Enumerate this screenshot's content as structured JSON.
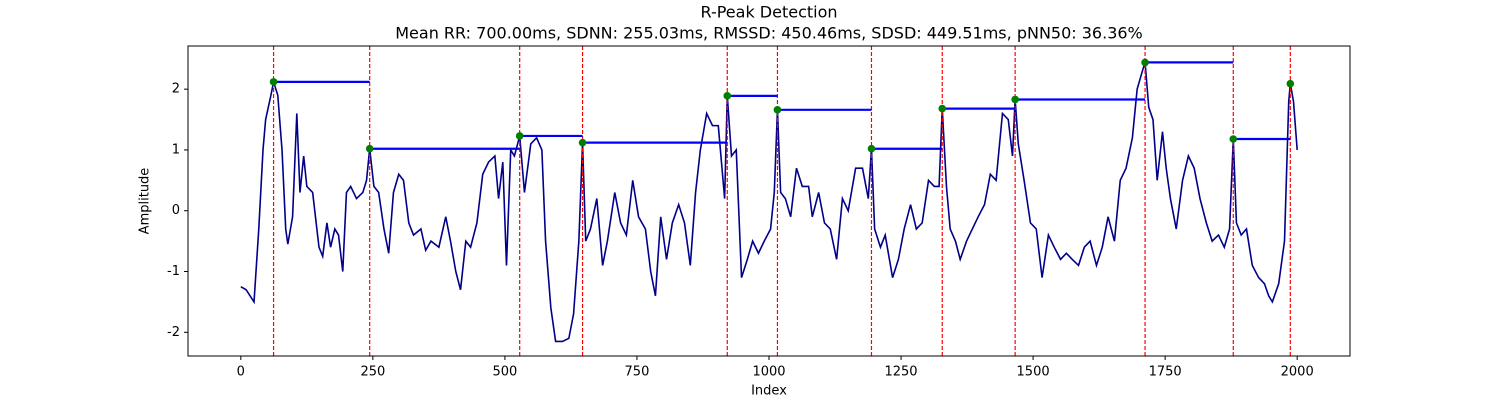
{
  "chart_data": {
    "type": "line",
    "title": "R-Peak Detection",
    "subtitle": "Mean RR: 700.00ms, SDNN: 255.03ms, RMSSD: 450.46ms, SDSD: 449.51ms, pNN50: 36.36%",
    "x_label": "Index",
    "y_label": "Amplitude",
    "x": [
      0,
      10,
      25,
      34,
      42,
      47,
      57,
      62,
      70,
      78,
      85,
      89,
      98,
      106,
      112,
      119,
      125,
      136,
      148,
      155,
      163,
      170,
      178,
      185,
      193,
      200,
      208,
      219,
      231,
      238,
      244,
      252,
      261,
      271,
      280,
      289,
      299,
      308,
      318,
      327,
      341,
      350,
      360,
      375,
      388,
      397,
      407,
      416,
      426,
      435,
      447,
      458,
      469,
      481,
      488,
      496,
      503,
      511,
      518,
      528,
      537,
      549,
      560,
      570,
      577,
      587,
      596,
      609,
      621,
      630,
      640,
      647,
      653,
      662,
      674,
      685,
      694,
      708,
      719,
      730,
      742,
      753,
      766,
      776,
      785,
      795,
      806,
      817,
      829,
      840,
      851,
      861,
      870,
      882,
      893,
      904,
      916,
      921,
      929,
      938,
      948,
      959,
      969,
      980,
      991,
      1003,
      1010,
      1016,
      1022,
      1031,
      1041,
      1052,
      1063,
      1075,
      1082,
      1094,
      1105,
      1116,
      1128,
      1139,
      1150,
      1164,
      1177,
      1188,
      1194,
      1200,
      1211,
      1220,
      1234,
      1245,
      1256,
      1268,
      1279,
      1290,
      1302,
      1313,
      1322,
      1328,
      1336,
      1343,
      1353,
      1362,
      1374,
      1385,
      1396,
      1408,
      1419,
      1430,
      1442,
      1453,
      1461,
      1466,
      1472,
      1483,
      1495,
      1506,
      1517,
      1529,
      1540,
      1552,
      1563,
      1574,
      1586,
      1597,
      1608,
      1620,
      1631,
      1642,
      1654,
      1665,
      1676,
      1688,
      1697,
      1707,
      1712,
      1719,
      1727,
      1735,
      1745,
      1752,
      1760,
      1771,
      1783,
      1794,
      1805,
      1816,
      1828,
      1839,
      1851,
      1862,
      1872,
      1879,
      1885,
      1894,
      1904,
      1915,
      1927,
      1938,
      1946,
      1953,
      1965,
      1976,
      1984,
      1987,
      1993,
      2000
    ],
    "series": [
      {
        "color": "#00008b",
        "values": [
          -1.25,
          -1.3,
          -1.5,
          -0.3,
          1.0,
          1.5,
          1.9,
          2.12,
          1.9,
          1.0,
          -0.3,
          -0.55,
          -0.1,
          1.6,
          0.3,
          0.9,
          0.4,
          0.3,
          -0.6,
          -0.75,
          -0.2,
          -0.6,
          -0.3,
          -0.4,
          -1.0,
          0.3,
          0.4,
          0.2,
          0.3,
          0.5,
          1.02,
          0.4,
          0.3,
          -0.3,
          -0.7,
          0.3,
          0.6,
          0.5,
          -0.2,
          -0.4,
          -0.3,
          -0.65,
          -0.5,
          -0.6,
          -0.1,
          -0.5,
          -1.0,
          -1.3,
          -0.5,
          -0.6,
          -0.2,
          0.6,
          0.8,
          0.9,
          0.2,
          0.8,
          -0.9,
          1.0,
          0.9,
          1.23,
          0.3,
          1.1,
          1.2,
          1.0,
          -0.5,
          -1.6,
          -2.15,
          -2.15,
          -2.1,
          -1.7,
          -0.5,
          1.12,
          -0.5,
          -0.3,
          0.2,
          -0.9,
          -0.5,
          0.3,
          -0.2,
          -0.4,
          0.5,
          -0.1,
          -0.3,
          -1.0,
          -1.4,
          -0.1,
          -0.8,
          -0.2,
          0.1,
          -0.2,
          -0.9,
          0.3,
          1.0,
          1.6,
          1.4,
          1.4,
          0.2,
          1.89,
          0.9,
          1.0,
          -1.1,
          -0.8,
          -0.5,
          -0.7,
          -0.5,
          -0.3,
          0.3,
          1.66,
          0.3,
          0.2,
          -0.1,
          0.7,
          0.4,
          0.4,
          -0.1,
          0.3,
          -0.2,
          -0.3,
          -0.8,
          0.2,
          0.0,
          0.7,
          0.7,
          0.2,
          1.02,
          -0.3,
          -0.6,
          -0.4,
          -1.1,
          -0.8,
          -0.3,
          0.1,
          -0.3,
          -0.2,
          0.5,
          0.4,
          0.4,
          1.68,
          0.4,
          -0.3,
          -0.5,
          -0.8,
          -0.5,
          -0.3,
          -0.1,
          0.1,
          0.6,
          0.5,
          1.6,
          1.5,
          0.9,
          1.83,
          1.1,
          0.5,
          -0.2,
          -0.3,
          -1.1,
          -0.4,
          -0.6,
          -0.8,
          -0.7,
          -0.8,
          -0.9,
          -0.6,
          -0.5,
          -0.9,
          -0.6,
          -0.1,
          -0.5,
          0.5,
          0.7,
          1.2,
          2.0,
          2.3,
          2.44,
          1.7,
          1.5,
          0.5,
          1.3,
          0.7,
          0.2,
          -0.3,
          0.5,
          0.9,
          0.7,
          0.2,
          -0.2,
          -0.5,
          -0.4,
          -0.6,
          -0.3,
          1.18,
          -0.2,
          -0.4,
          -0.3,
          -0.9,
          -1.1,
          -1.2,
          -1.4,
          -1.5,
          -1.2,
          -0.5,
          1.8,
          2.09,
          1.8,
          1.0
        ]
      }
    ],
    "peaks": {
      "x": [
        62,
        244,
        528,
        647,
        921,
        1016,
        1194,
        1328,
        1466,
        1712,
        1879,
        1987
      ],
      "values": [
        2.12,
        1.02,
        1.23,
        1.12,
        1.89,
        1.66,
        1.02,
        1.68,
        1.83,
        2.44,
        1.18,
        2.09
      ],
      "color": "green",
      "line_color": "red",
      "interval_color": "blue"
    },
    "xlim": [
      -100,
      2100
    ],
    "ylim": [
      -2.39,
      2.71
    ],
    "xticks": [
      0,
      250,
      500,
      750,
      1000,
      1250,
      1500,
      1750,
      2000
    ],
    "yticks": [
      -2,
      -1,
      0,
      1,
      2
    ]
  }
}
